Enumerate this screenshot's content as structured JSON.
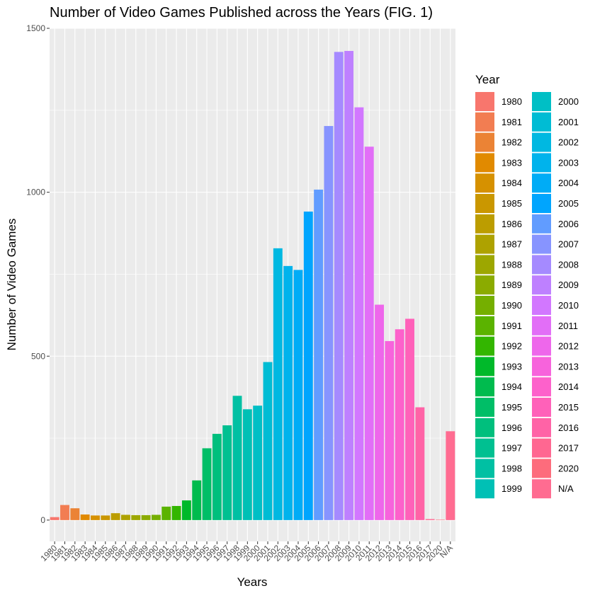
{
  "chart_data": {
    "type": "bar",
    "title": "Number of Video Games Published across the Years (FIG. 1)",
    "xlabel": "Years",
    "ylabel": "Number of Video Games",
    "ylim": [
      -65,
      1500
    ],
    "yticks": [
      0,
      500,
      1000,
      1500
    ],
    "grid": true,
    "legend_title": "Year",
    "legend_position": "right",
    "categories": [
      "1980",
      "1981",
      "1982",
      "1983",
      "1984",
      "1985",
      "1986",
      "1987",
      "1988",
      "1989",
      "1990",
      "1991",
      "1992",
      "1993",
      "1994",
      "1995",
      "1996",
      "1997",
      "1998",
      "1999",
      "2000",
      "2001",
      "2002",
      "2003",
      "2004",
      "2005",
      "2006",
      "2007",
      "2008",
      "2009",
      "2010",
      "2011",
      "2012",
      "2013",
      "2014",
      "2015",
      "2016",
      "2017",
      "2020",
      "N/A"
    ],
    "values": [
      9,
      46,
      36,
      17,
      14,
      14,
      21,
      16,
      15,
      15,
      16,
      41,
      43,
      60,
      121,
      219,
      263,
      289,
      379,
      338,
      349,
      482,
      829,
      775,
      763,
      941,
      1008,
      1202,
      1428,
      1431,
      1259,
      1139,
      657,
      546,
      582,
      614,
      344,
      3,
      1,
      271
    ],
    "colors": [
      "#F8766D",
      "#F27D52",
      "#EB8335",
      "#E18A00",
      "#D69100",
      "#CA9700",
      "#BC9D00",
      "#AEA200",
      "#9DA700",
      "#8BAB00",
      "#75AF00",
      "#5BB300",
      "#33B600",
      "#00B92A",
      "#00BB4E",
      "#00BE67",
      "#00BF7D",
      "#00C091",
      "#00C0A3",
      "#00C0B5",
      "#00BFC5",
      "#00BCD4",
      "#00B8E1",
      "#00B3EC",
      "#00ACF6",
      "#00A5FE",
      "#619CFF",
      "#8794FF",
      "#A58AFF",
      "#BE80FF",
      "#D277FF",
      "#E26EF7",
      "#EE67EB",
      "#F763DC",
      "#FD61CB",
      "#FF61B9",
      "#FF63A6",
      "#FF6791",
      "#FD6C7C",
      "#FF6C91"
    ]
  }
}
